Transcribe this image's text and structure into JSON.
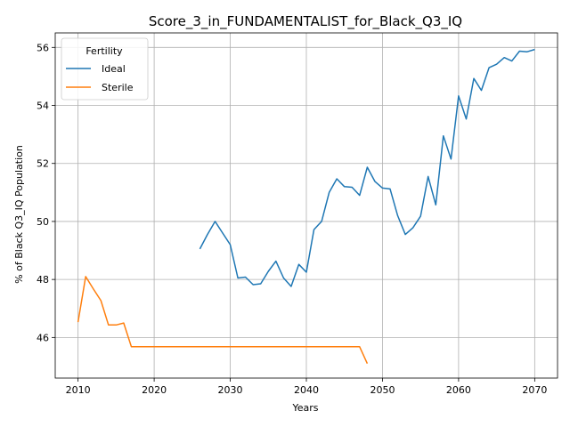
{
  "chart_data": {
    "type": "line",
    "title": "Score_3_in_FUNDAMENTALIST_for_Black_Q3_IQ",
    "xlabel": "Years",
    "ylabel": "% of Black Q3_IQ Population",
    "xlim": [
      2007,
      2073
    ],
    "ylim": [
      44.6,
      56.5
    ],
    "xticks": [
      2010,
      2020,
      2030,
      2040,
      2050,
      2060,
      2070
    ],
    "yticks": [
      46,
      48,
      50,
      52,
      54,
      56
    ],
    "grid": true,
    "legend": {
      "title": "Fertility",
      "placement": "top-left",
      "entries": [
        "Ideal",
        "Sterile"
      ]
    },
    "series": [
      {
        "name": "Ideal",
        "color": "#1f77b4",
        "x": [
          2026,
          2027,
          2028,
          2029,
          2030,
          2031,
          2032,
          2033,
          2034,
          2035,
          2036,
          2037,
          2038,
          2039,
          2040,
          2041,
          2042,
          2043,
          2044,
          2045,
          2046,
          2047,
          2048,
          2049,
          2050,
          2051,
          2052,
          2053,
          2054,
          2055,
          2056,
          2057,
          2058,
          2059,
          2060,
          2061,
          2062,
          2063,
          2064,
          2065,
          2066,
          2067,
          2068,
          2069,
          2070
        ],
        "y": [
          49.05,
          49.55,
          50.0,
          49.6,
          49.2,
          48.05,
          48.08,
          47.82,
          47.85,
          48.28,
          48.63,
          48.05,
          47.76,
          48.52,
          48.25,
          49.72,
          50.0,
          51.0,
          51.47,
          51.2,
          51.18,
          50.9,
          51.87,
          51.38,
          51.15,
          51.12,
          50.2,
          49.55,
          49.78,
          50.18,
          51.55,
          50.57,
          52.95,
          52.15,
          54.33,
          53.53,
          54.93,
          54.52,
          55.3,
          55.42,
          55.65,
          55.53,
          55.87,
          55.85,
          55.93
        ]
      },
      {
        "name": "Sterile",
        "color": "#ff7f0e",
        "x": [
          2010,
          2011,
          2012,
          2013,
          2014,
          2015,
          2016,
          2017,
          2018,
          2019,
          2020,
          2021,
          2022,
          2023,
          2024,
          2025,
          2026,
          2027,
          2028,
          2029,
          2030,
          2031,
          2032,
          2033,
          2034,
          2035,
          2036,
          2037,
          2038,
          2039,
          2040,
          2041,
          2042,
          2043,
          2044,
          2045,
          2046,
          2047,
          2048
        ],
        "y": [
          46.53,
          48.1,
          47.68,
          47.27,
          46.43,
          46.43,
          46.5,
          45.68,
          45.68,
          45.68,
          45.68,
          45.68,
          45.68,
          45.68,
          45.68,
          45.68,
          45.68,
          45.68,
          45.68,
          45.68,
          45.68,
          45.68,
          45.68,
          45.68,
          45.68,
          45.68,
          45.68,
          45.68,
          45.68,
          45.68,
          45.68,
          45.68,
          45.68,
          45.68,
          45.68,
          45.68,
          45.68,
          45.68,
          45.1
        ]
      }
    ]
  }
}
